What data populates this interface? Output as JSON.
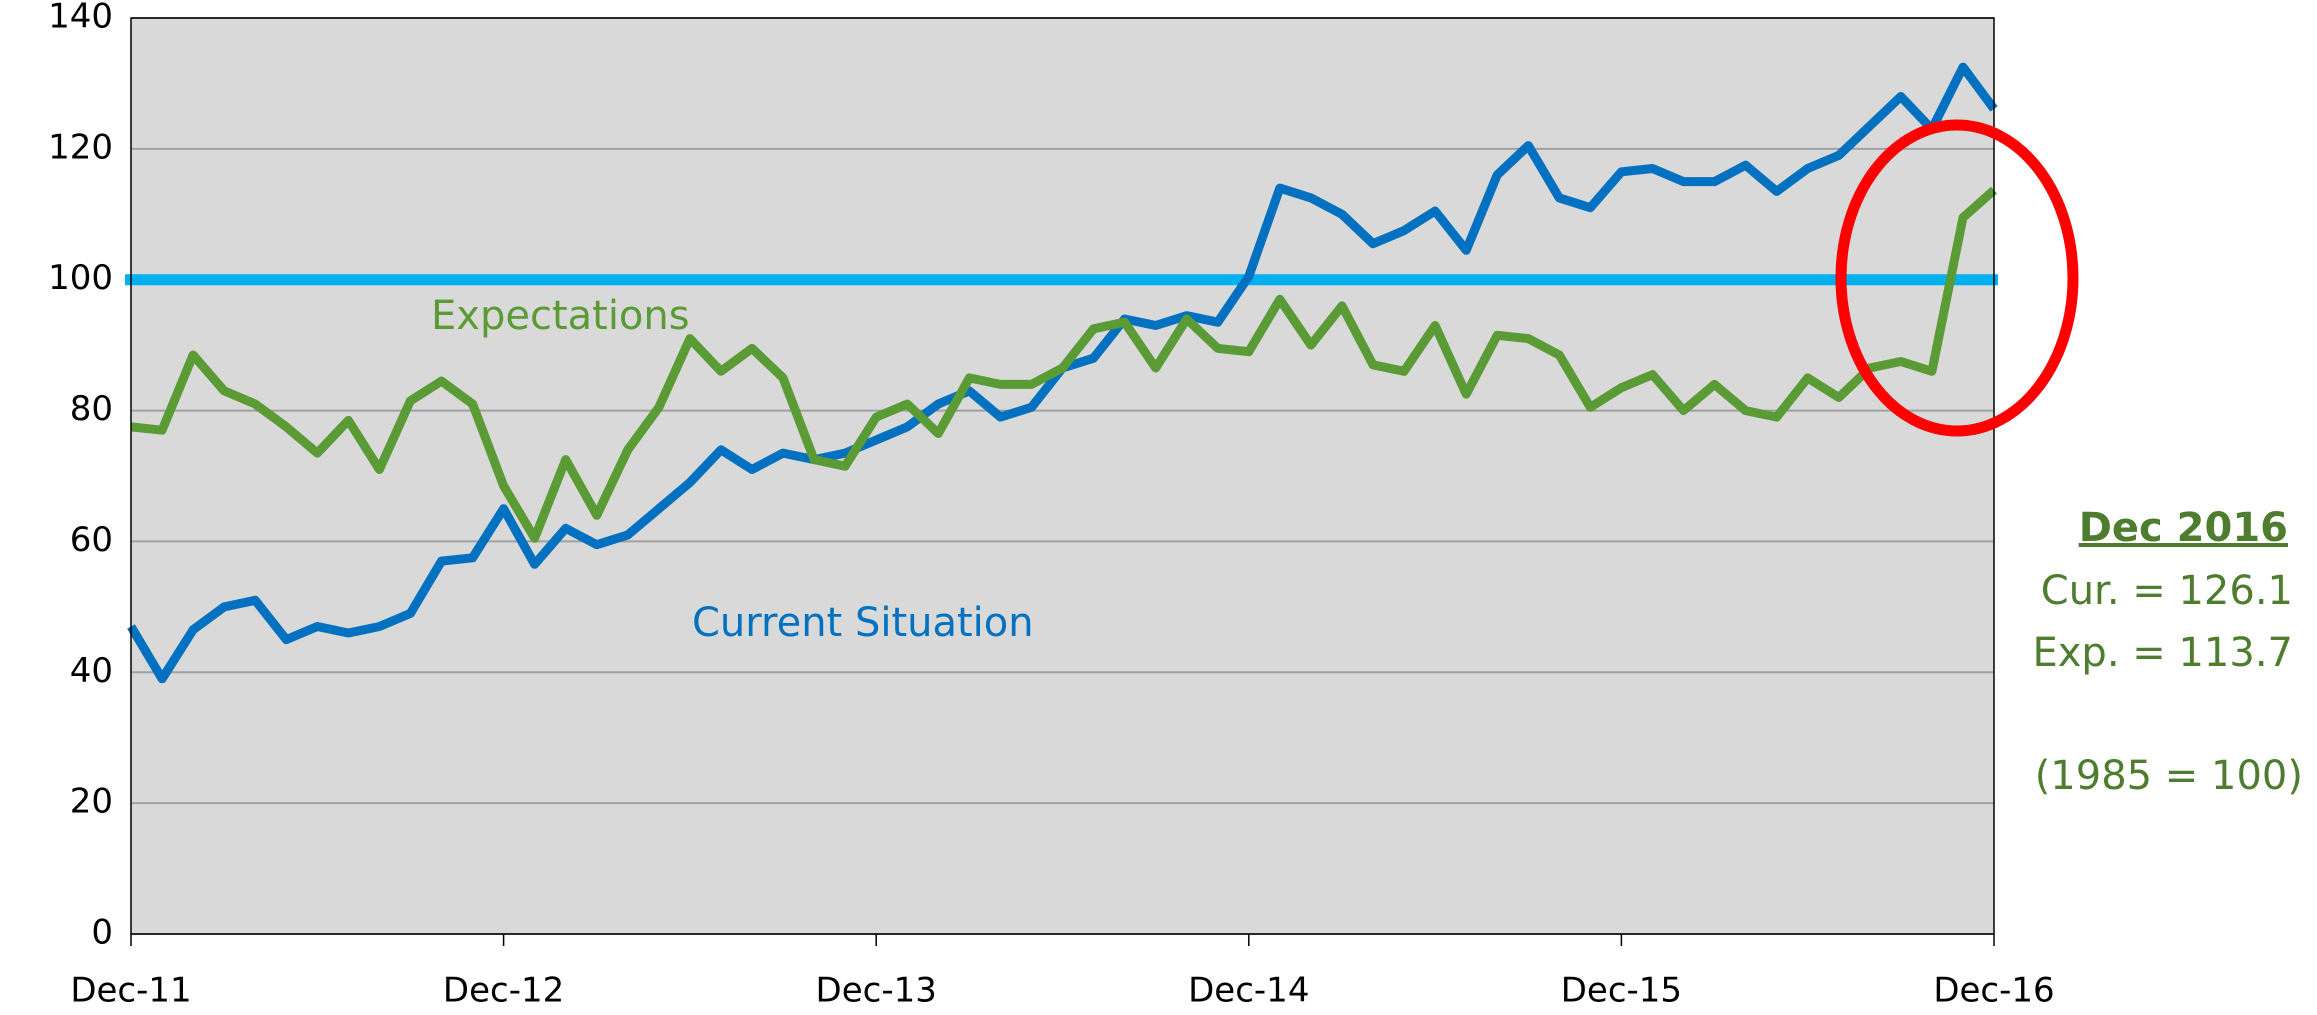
{
  "chart_data": {
    "type": "line",
    "categories": [
      "Dec-11",
      null,
      null,
      null,
      null,
      null,
      null,
      null,
      null,
      null,
      null,
      null,
      "Dec-12",
      null,
      null,
      null,
      null,
      null,
      null,
      null,
      null,
      null,
      null,
      null,
      "Dec-13",
      null,
      null,
      null,
      null,
      null,
      null,
      null,
      null,
      null,
      null,
      null,
      "Dec-14",
      null,
      null,
      null,
      null,
      null,
      null,
      null,
      null,
      null,
      null,
      null,
      "Dec-15",
      null,
      null,
      null,
      null,
      null,
      null,
      null,
      null,
      null,
      null,
      null,
      "Dec-16"
    ],
    "series": [
      {
        "name": "Current Situation",
        "color": "#0070c0",
        "values": [
          47,
          39,
          46.5,
          50,
          51,
          45,
          47,
          46,
          47,
          49,
          57,
          57.5,
          65,
          56.5,
          62,
          59.5,
          61,
          65,
          69,
          74,
          71,
          73.5,
          72.5,
          73.5,
          75.5,
          77.5,
          81,
          83,
          79,
          80.5,
          86.5,
          88,
          94,
          93,
          94.5,
          93.5,
          100.5,
          114,
          112.5,
          110,
          105.5,
          107.5,
          110.5,
          104.5,
          116,
          120.5,
          112.5,
          111,
          116.5,
          117,
          115,
          115,
          117.5,
          113.5,
          117,
          119,
          123.5,
          128,
          123,
          132.5,
          126.1
        ]
      },
      {
        "name": "Expectations",
        "color": "#5b9b35",
        "values": [
          77.5,
          77,
          88.5,
          83,
          81,
          77.5,
          73.5,
          78.5,
          71,
          81.5,
          84.5,
          81,
          68.5,
          60.5,
          72.5,
          64,
          74,
          80.5,
          91,
          86,
          89.5,
          85,
          72.5,
          71.5,
          79,
          81,
          76.5,
          85,
          84,
          84,
          86.5,
          92.5,
          93.5,
          86.5,
          94,
          89.5,
          89,
          97,
          90,
          96,
          87,
          86,
          93,
          82.5,
          91.5,
          91,
          88.5,
          80.5,
          83.5,
          85.5,
          80,
          84,
          80,
          79,
          85,
          82,
          86.5,
          87.5,
          86,
          109.5,
          113.7
        ]
      }
    ],
    "reference_line": {
      "value": 100,
      "color": "#00b0f0"
    },
    "ylim": [
      0,
      140
    ],
    "yticks": [
      0,
      20,
      40,
      60,
      80,
      100,
      120,
      140
    ],
    "grid": true,
    "annotations": {
      "heading": "Dec 2016",
      "current": "Cur. = 126.1",
      "expectations": "Exp. = 113.7",
      "base": "(1985 = 100)"
    }
  }
}
